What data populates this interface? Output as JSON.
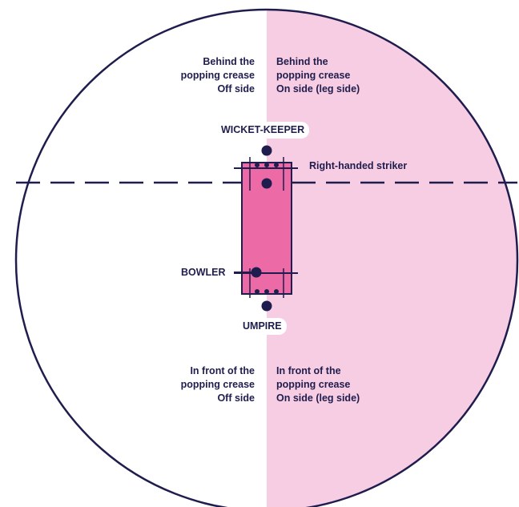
{
  "colors": {
    "navy": "#1f1d4d",
    "on_side_fill": "#f7cde3",
    "pitch_fill": "#ec6ba7",
    "off_side_fill": "#ffffff"
  },
  "labels": {
    "top_left": [
      "Behind the",
      "popping crease",
      "Off side"
    ],
    "top_right": [
      "Behind the",
      "popping crease",
      "On side (leg side)"
    ],
    "bottom_left": [
      "In front of the",
      "popping crease",
      "Off side"
    ],
    "bottom_right": [
      "In front of the",
      "popping crease",
      "On side (leg side)"
    ],
    "wicket_keeper": "WICKET-KEEPER",
    "striker": "Right-handed striker",
    "bowler": "BOWLER",
    "umpire": "UMPIRE"
  }
}
